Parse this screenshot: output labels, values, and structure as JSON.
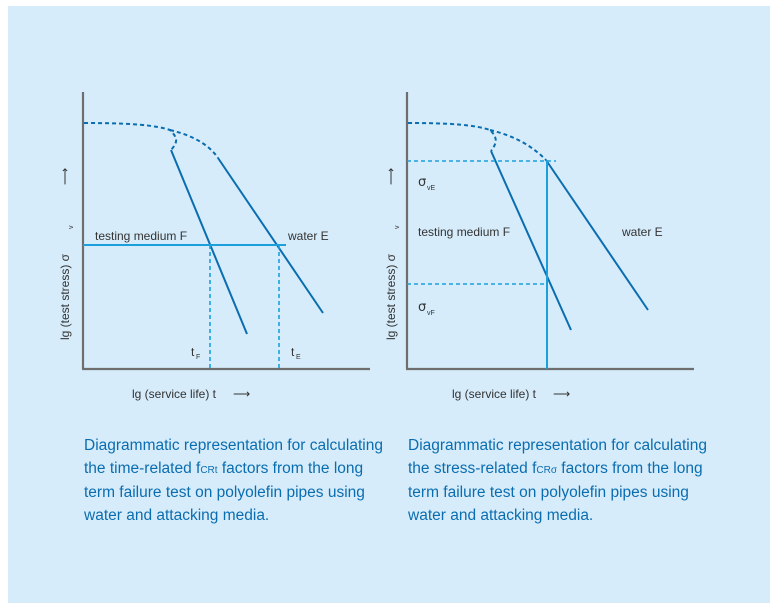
{
  "left_diagram": {
    "y_axis_label": "lg (test stress) σ",
    "y_axis_sub": "v",
    "y_arrow": "⟶",
    "x_axis_label": "lg (service life) t",
    "x_arrow": "⟶",
    "medium_label": "testing medium F",
    "water_label": "water E",
    "tf_label": "t",
    "tf_sub": "F",
    "te_label": "t",
    "te_sub": "E"
  },
  "right_diagram": {
    "y_axis_label": "lg (test stress) σ",
    "y_axis_sub": "v",
    "y_arrow": "⟶",
    "x_axis_label": "lg (service life) t",
    "x_arrow": "⟶",
    "medium_label": "testing medium F",
    "water_label": "water E",
    "sigma_e_label": "σ",
    "sigma_e_sub": "vE",
    "sigma_f_label": "σ",
    "sigma_f_sub": "vF"
  },
  "captions": {
    "left": {
      "before": "Diagrammatic representation for calculating the time-related ",
      "symbol": "f",
      "symbol_sub": "CRt",
      "after": " factors from the long term failure test on polyolefin pipes using water and attacking media."
    },
    "right": {
      "before": "Diagrammatic representation for calculating the stress-related ",
      "symbol": "f",
      "symbol_sub": "CRσ",
      "after": " factors from the long term failure test on polyolefin pipes using water and attacking media."
    }
  },
  "colors": {
    "background": "#d6ecfa",
    "curve": "#0a6db0",
    "guide": "#1ba0dc",
    "axis": "#6e6e6e",
    "caption_text": "#0a6db0"
  }
}
